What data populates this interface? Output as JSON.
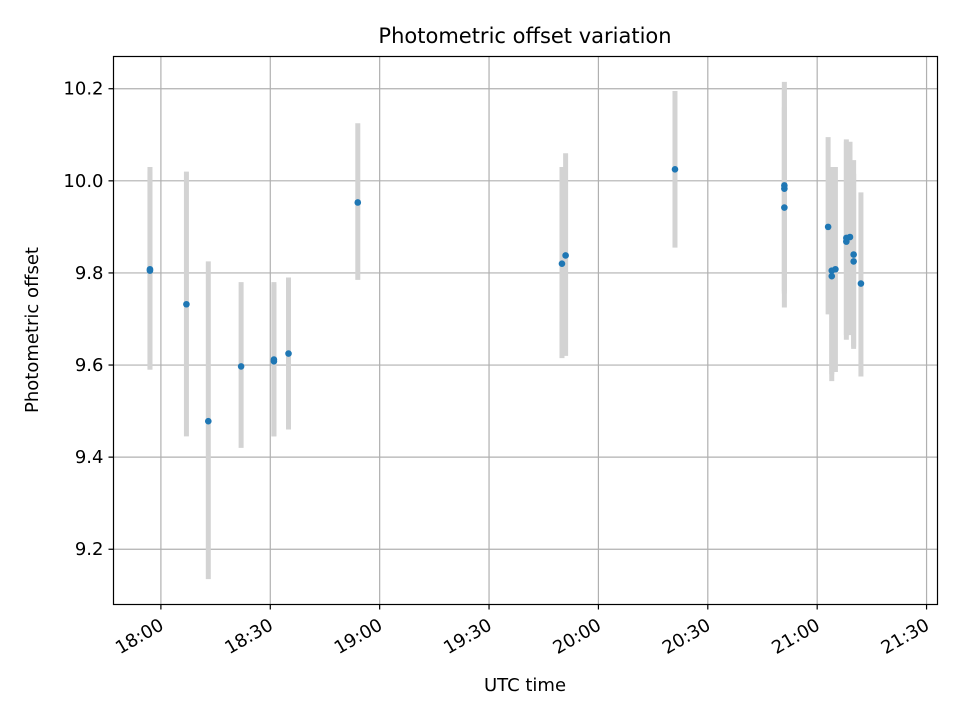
{
  "chart_data": {
    "type": "scatter",
    "title": "Photometric offset variation",
    "xlabel": "UTC time",
    "ylabel": "Photometric offset",
    "x_unit": "UTC time (HH:MM)",
    "xlim": [
      "17:47",
      "21:33"
    ],
    "ylim": [
      9.08,
      10.27
    ],
    "x_ticks": [
      "18:00",
      "18:30",
      "19:00",
      "19:30",
      "20:00",
      "20:30",
      "21:00",
      "21:30"
    ],
    "y_ticks": [
      "9.2",
      "9.4",
      "9.6",
      "9.8",
      "10.0",
      "10.2"
    ],
    "grid": true,
    "series": [
      {
        "color": "#1f77b4",
        "errorbar_color": "#d3d3d3",
        "points": [
          {
            "x": "17:57",
            "y": 9.805,
            "ylow": 9.59,
            "yhigh": 10.02
          },
          {
            "x": "17:57",
            "y": 9.808,
            "ylow": 9.59,
            "yhigh": 10.03
          },
          {
            "x": "18:07",
            "y": 9.732,
            "ylow": 9.445,
            "yhigh": 10.02
          },
          {
            "x": "18:13",
            "y": 9.478,
            "ylow": 9.135,
            "yhigh": 9.825
          },
          {
            "x": "18:22",
            "y": 9.597,
            "ylow": 9.42,
            "yhigh": 9.78
          },
          {
            "x": "18:31",
            "y": 9.608,
            "ylow": 9.445,
            "yhigh": 9.775
          },
          {
            "x": "18:31",
            "y": 9.612,
            "ylow": 9.445,
            "yhigh": 9.78
          },
          {
            "x": "18:35",
            "y": 9.625,
            "ylow": 9.46,
            "yhigh": 9.79
          },
          {
            "x": "18:54",
            "y": 9.953,
            "ylow": 9.785,
            "yhigh": 10.125
          },
          {
            "x": "19:50",
            "y": 9.82,
            "ylow": 9.615,
            "yhigh": 10.03
          },
          {
            "x": "19:51",
            "y": 9.838,
            "ylow": 9.62,
            "yhigh": 10.06
          },
          {
            "x": "20:21",
            "y": 10.025,
            "ylow": 9.855,
            "yhigh": 10.195
          },
          {
            "x": "20:51",
            "y": 9.983,
            "ylow": 9.755,
            "yhigh": 10.215
          },
          {
            "x": "20:51",
            "y": 9.99,
            "ylow": 9.76,
            "yhigh": 10.2
          },
          {
            "x": "20:51",
            "y": 9.942,
            "ylow": 9.725,
            "yhigh": 10.16
          },
          {
            "x": "21:03",
            "y": 9.9,
            "ylow": 9.71,
            "yhigh": 10.095
          },
          {
            "x": "21:04",
            "y": 9.805,
            "ylow": 9.565,
            "yhigh": 10.03
          },
          {
            "x": "21:04",
            "y": 9.793,
            "ylow": 9.58,
            "yhigh": 10.02
          },
          {
            "x": "21:05",
            "y": 9.808,
            "ylow": 9.585,
            "yhigh": 10.03
          },
          {
            "x": "21:08",
            "y": 9.868,
            "ylow": 9.655,
            "yhigh": 10.09
          },
          {
            "x": "21:08",
            "y": 9.876,
            "ylow": 9.665,
            "yhigh": 10.085
          },
          {
            "x": "21:09",
            "y": 9.878,
            "ylow": 9.665,
            "yhigh": 10.085
          },
          {
            "x": "21:10",
            "y": 9.825,
            "ylow": 9.64,
            "yhigh": 10.015
          },
          {
            "x": "21:10",
            "y": 9.84,
            "ylow": 9.635,
            "yhigh": 10.045
          },
          {
            "x": "21:12",
            "y": 9.777,
            "ylow": 9.575,
            "yhigh": 9.975
          }
        ]
      }
    ]
  }
}
